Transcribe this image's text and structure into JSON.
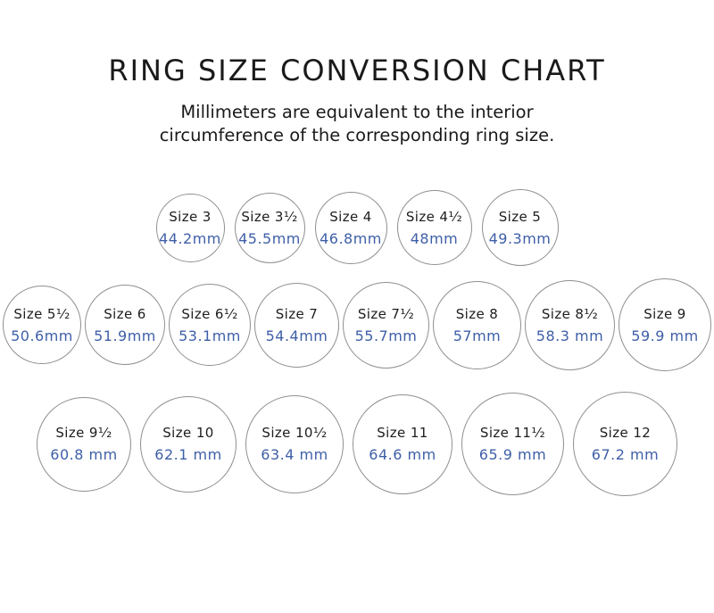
{
  "page": {
    "title": "RING SIZE CONVERSION CHART",
    "subtitle_lines": [
      "Millimeters are equivalent to the interior",
      "circumference of the corresponding ring size."
    ]
  },
  "colors": {
    "title_text": "#1a1a1a",
    "size_label_text": "#1d1d1d",
    "mm_value_text": "#3e5fa7",
    "circle_border": "#8f8f8f",
    "background": "#ffffff"
  },
  "rows": [
    {
      "circles": [
        {
          "size_label": "Size 3",
          "mm_display": "44.2mm",
          "mm": 44.2
        },
        {
          "size_label": "Size 3¹⁄₂",
          "mm_display": "45.5mm",
          "mm": 45.5
        },
        {
          "size_label": "Size 4",
          "mm_display": "46.8mm",
          "mm": 46.8
        },
        {
          "size_label": "Size 4¹⁄₂",
          "mm_display": "48mm",
          "mm": 48
        },
        {
          "size_label": "Size 5",
          "mm_display": "49.3mm",
          "mm": 49.3
        }
      ]
    },
    {
      "circles": [
        {
          "size_label": "Size 5¹⁄₂",
          "mm_display": "50.6mm",
          "mm": 50.6
        },
        {
          "size_label": "Size 6",
          "mm_display": "51.9mm",
          "mm": 51.9
        },
        {
          "size_label": "Size 6¹⁄₂",
          "mm_display": "53.1mm",
          "mm": 53.1
        },
        {
          "size_label": "Size 7",
          "mm_display": "54.4mm",
          "mm": 54.4
        },
        {
          "size_label": "Size 7¹⁄₂",
          "mm_display": "55.7mm",
          "mm": 55.7
        },
        {
          "size_label": "Size 8",
          "mm_display": "57mm",
          "mm": 57
        },
        {
          "size_label": "Size 8¹⁄₂",
          "mm_display": "58.3 mm",
          "mm": 58.3
        },
        {
          "size_label": "Size 9",
          "mm_display": "59.9 mm",
          "mm": 59.9
        }
      ]
    },
    {
      "circles": [
        {
          "size_label": "Size 9¹⁄₂",
          "mm_display": "60.8 mm",
          "mm": 60.8
        },
        {
          "size_label": "Size 10",
          "mm_display": "62.1 mm",
          "mm": 62.1
        },
        {
          "size_label": "Size 10¹⁄₂",
          "mm_display": "63.4 mm",
          "mm": 63.4
        },
        {
          "size_label": "Size 11",
          "mm_display": "64.6 mm",
          "mm": 64.6
        },
        {
          "size_label": "Size 11¹⁄₂",
          "mm_display": "65.9 mm",
          "mm": 65.9
        },
        {
          "size_label": "Size 12",
          "mm_display": "67.2 mm",
          "mm": 67.2
        }
      ]
    }
  ]
}
